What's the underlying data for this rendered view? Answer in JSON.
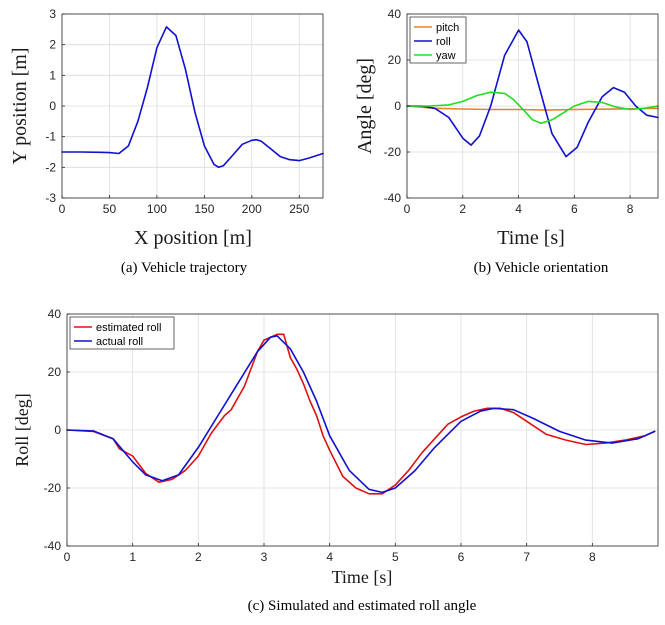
{
  "chart_data": [
    {
      "id": "a",
      "type": "line",
      "caption": "(a) Vehicle trajectory",
      "xlabel": "X position [m]",
      "ylabel": "Y position [m]",
      "xlim": [
        0,
        275
      ],
      "ylim": [
        -3,
        3
      ],
      "xticks": [
        0,
        50,
        100,
        150,
        200,
        250
      ],
      "yticks": [
        -3,
        -2,
        -1,
        0,
        1,
        2,
        3
      ],
      "grid": true,
      "series": [
        {
          "color": "#1010d0",
          "x": [
            0,
            20,
            40,
            50,
            60,
            70,
            80,
            90,
            100,
            110,
            120,
            130,
            140,
            150,
            160,
            165,
            170,
            180,
            190,
            200,
            205,
            210,
            220,
            230,
            240,
            250,
            260,
            275
          ],
          "y": [
            -1.5,
            -1.5,
            -1.51,
            -1.52,
            -1.55,
            -1.3,
            -0.5,
            0.6,
            1.9,
            2.58,
            2.3,
            1.2,
            -0.2,
            -1.3,
            -1.9,
            -2.0,
            -1.95,
            -1.6,
            -1.25,
            -1.12,
            -1.1,
            -1.15,
            -1.4,
            -1.65,
            -1.75,
            -1.78,
            -1.7,
            -1.55
          ]
        }
      ]
    },
    {
      "id": "b",
      "type": "line",
      "caption": "(b) Vehicle orientation",
      "xlabel": "Time [s]",
      "ylabel": "Angle [deg]",
      "xlim": [
        0,
        9
      ],
      "ylim": [
        -40,
        40
      ],
      "xticks": [
        0,
        2,
        4,
        6,
        8
      ],
      "yticks": [
        -40,
        -20,
        0,
        20,
        40
      ],
      "grid": true,
      "legend": {
        "placement": "top-left"
      },
      "series": [
        {
          "name": "pitch",
          "color": "#e8822a",
          "x": [
            0,
            1,
            2,
            3,
            4,
            5,
            6,
            7,
            8,
            9
          ],
          "y": [
            0,
            -1,
            -1.3,
            -1.5,
            -1.5,
            -1.8,
            -1.5,
            -1.4,
            -1.2,
            -1
          ]
        },
        {
          "name": "roll",
          "color": "#1010d0",
          "x": [
            0,
            0.5,
            1,
            1.5,
            2,
            2.3,
            2.6,
            3,
            3.5,
            4,
            4.3,
            4.7,
            5.2,
            5.7,
            6.1,
            6.5,
            7,
            7.4,
            7.8,
            8.2,
            8.6,
            9
          ],
          "y": [
            0,
            0,
            -1,
            -5,
            -14,
            -17,
            -13,
            0,
            22,
            33,
            28,
            10,
            -12,
            -22,
            -18,
            -7,
            4,
            8,
            6,
            0,
            -4,
            -5
          ]
        },
        {
          "name": "yaw",
          "color": "#22dd22",
          "x": [
            0,
            0.8,
            1.5,
            2,
            2.5,
            3,
            3.5,
            3.8,
            4.2,
            4.5,
            4.8,
            5.2,
            5.6,
            6,
            6.5,
            7,
            7.5,
            8,
            8.5,
            9
          ],
          "y": [
            0,
            0,
            0.5,
            2,
            4.5,
            6,
            5.5,
            3,
            -2,
            -6,
            -7.5,
            -6,
            -3,
            0,
            2,
            1.5,
            -0.5,
            -1.5,
            -1,
            0
          ]
        }
      ]
    },
    {
      "id": "c",
      "type": "line",
      "caption": "(c) Simulated and estimated roll angle",
      "xlabel": "Time [s]",
      "ylabel": "Roll [deg]",
      "xlim": [
        0,
        9
      ],
      "ylim": [
        -40,
        40
      ],
      "xticks": [
        0,
        1,
        2,
        3,
        4,
        5,
        6,
        7,
        8
      ],
      "yticks": [
        -40,
        -20,
        0,
        20,
        40
      ],
      "grid": true,
      "legend": {
        "placement": "top-left"
      },
      "series": [
        {
          "name": "estimated roll",
          "color": "#e01010",
          "x": [
            0,
            0.4,
            0.7,
            0.8,
            1.0,
            1.2,
            1.4,
            1.6,
            1.8,
            2.0,
            2.2,
            2.4,
            2.5,
            2.6,
            2.7,
            2.8,
            2.9,
            3.0,
            3.1,
            3.2,
            3.3,
            3.4,
            3.5,
            3.6,
            3.7,
            3.8,
            3.9,
            4.0,
            4.2,
            4.4,
            4.6,
            4.8,
            5.0,
            5.2,
            5.4,
            5.6,
            5.8,
            6.0,
            6.2,
            6.4,
            6.6,
            6.8,
            7.0,
            7.3,
            7.6,
            7.9,
            8.2,
            8.5,
            8.8,
            8.95
          ],
          "y": [
            0,
            -0.5,
            -3,
            -6.5,
            -9,
            -15,
            -18,
            -17,
            -14,
            -9,
            -1,
            5,
            7,
            11,
            15,
            21,
            27,
            31,
            32,
            33,
            33,
            25,
            21,
            16,
            10,
            5,
            -2,
            -7,
            -16,
            -20,
            -22,
            -22,
            -19,
            -14,
            -8,
            -3,
            2,
            4.5,
            6.5,
            7.5,
            7.5,
            6,
            3,
            -1.5,
            -3.5,
            -5,
            -4.5,
            -3.5,
            -2,
            -0.5
          ]
        },
        {
          "name": "actual roll",
          "color": "#1010d0",
          "x": [
            0,
            0.4,
            0.7,
            1.0,
            1.2,
            1.45,
            1.7,
            2.0,
            2.3,
            2.6,
            2.9,
            3.1,
            3.2,
            3.4,
            3.6,
            3.8,
            4.0,
            4.3,
            4.6,
            4.8,
            5.0,
            5.3,
            5.6,
            6.0,
            6.3,
            6.5,
            6.8,
            7.1,
            7.5,
            7.9,
            8.3,
            8.7,
            8.95
          ],
          "y": [
            0,
            -0.3,
            -3,
            -11,
            -15.5,
            -17.5,
            -15.5,
            -6,
            5,
            16,
            27,
            32,
            32.5,
            28,
            20,
            10,
            -2,
            -14,
            -20.5,
            -21.5,
            -20,
            -14,
            -6,
            3,
            6.5,
            7.5,
            7,
            4,
            -0.5,
            -3.5,
            -4.5,
            -3,
            -0.5
          ]
        }
      ]
    }
  ]
}
